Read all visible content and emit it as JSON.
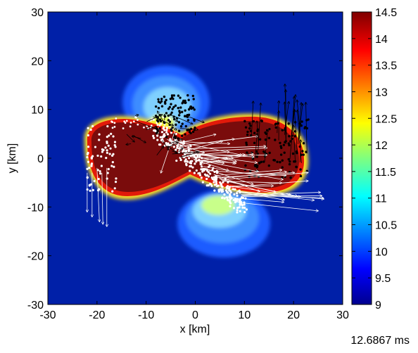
{
  "chart_data": {
    "type": "heatmap",
    "title": "",
    "xlabel": "x [km]",
    "ylabel": "y [km]",
    "xlim": [
      -30,
      30
    ],
    "ylim": [
      -30,
      30
    ],
    "x_ticks": [
      -30,
      -20,
      -10,
      0,
      10,
      20,
      30
    ],
    "y_ticks": [
      -30,
      -20,
      -10,
      0,
      10,
      20,
      30
    ],
    "colorbar": {
      "range": [
        9,
        14.5
      ],
      "ticks": [
        9,
        9.5,
        10,
        10.5,
        11,
        11.5,
        12,
        12.5,
        13,
        13.5,
        14,
        14.5
      ],
      "colormap": "jet"
    },
    "grid": false,
    "background_color": "#0020a8",
    "high_region_color": "#7a0c0c",
    "point_colors": {
      "black": "#000000",
      "white": "#ffffff"
    },
    "footer_time": "12.6867 ms"
  }
}
